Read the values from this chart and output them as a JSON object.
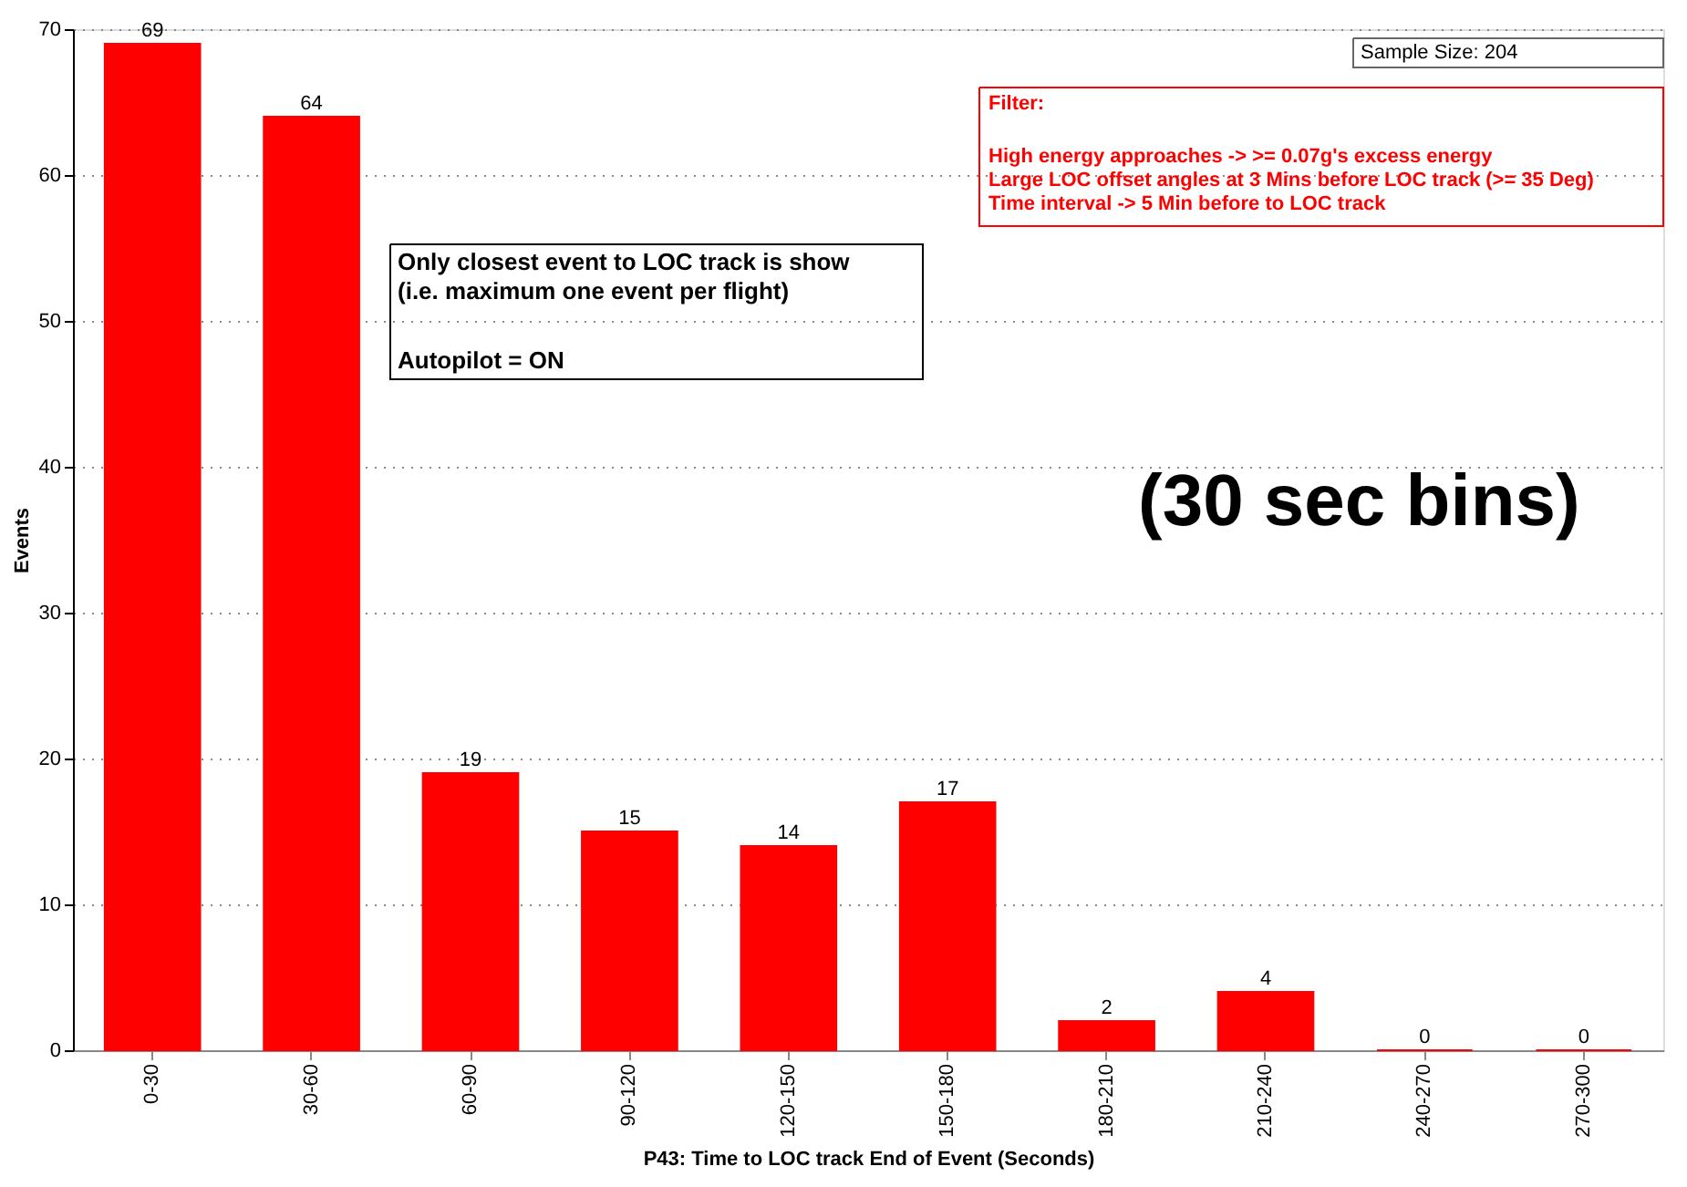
{
  "chart_data": {
    "type": "bar",
    "xlabel": "P43: Time to LOC track End of Event (Seconds)",
    "ylabel": "Events",
    "categories": [
      "0-30",
      "30-60",
      "60-90",
      "90-120",
      "120-150",
      "150-180",
      "180-210",
      "210-240",
      "240-270",
      "270-300"
    ],
    "values": [
      69,
      64,
      19,
      15,
      14,
      17,
      2,
      4,
      0,
      0
    ],
    "color": "#ff0000",
    "data_labels": true,
    "grid": "y",
    "ylim": [
      0,
      70
    ],
    "yticks": [
      0,
      10,
      20,
      30,
      40,
      50,
      60,
      70
    ],
    "annotations": [
      "Sample Size:          204",
      "Filter:",
      "High energy approaches -> >= 0.07g's excess energy",
      "Large LOC offset angles at 3 Mins before LOC track (>= 35 Deg)",
      "Time interval -> 5 Min before to LOC track",
      "Only closest event to LOC track is show",
      "(i.e. maximum one event per flight)",
      "Autopilot = ON",
      "(30 sec bins)"
    ]
  }
}
